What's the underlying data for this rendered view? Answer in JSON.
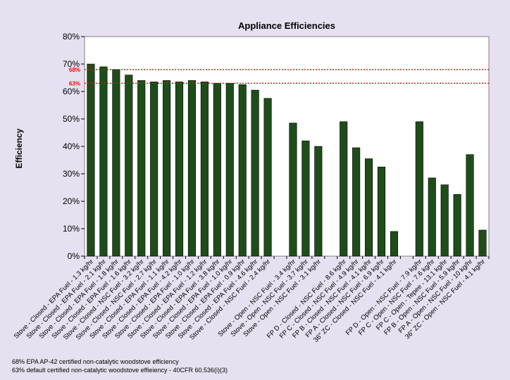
{
  "chart_data": {
    "type": "bar",
    "title": "Appliance Efficiencies",
    "xlabel": "",
    "ylabel": "Efficiency",
    "ylim": [
      0,
      80
    ],
    "yticks": [
      "0%",
      "10%",
      "20%",
      "30%",
      "40%",
      "50%",
      "60%",
      "70%",
      "80%"
    ],
    "grid": false,
    "legend": "none",
    "bar_color": "#1f4d1a",
    "categories": [
      "Stove - Closed - EPA Fuel - 1.3 kg/hr",
      "Stove - Closed - EPA Fuel - 2.1 kg/hr",
      "Stove - Closed - EPA Fuel - 1.8 kg/hr",
      "Stove - Closed - EPA Fuel - 1.6 kg/hr",
      "Stove - Closed - NSC Fuel - 3.2 kg/hr",
      "Stove - Closed - NSC Fuel - 2.7 kg/hr",
      "Stove - Closed - EPA Fuel - 1.1 kg/hr",
      "Stove - Closed - EPA Fuel - 4.2 kg/hr",
      "Stove - Closed - EPA Fuel - 1.0 kg/hr",
      "Stove - Closed - EPA Fuel - 1.2 kg/hr",
      "Stove - Closed - EPA Fuel - 3.8 kg/hr",
      "Stove - Closed - EPA Fuel - 1.0 kg/hr",
      "Stove - Closed - EPA Fuel - 0.9 kg/hr",
      "Stove - Closed - EPA Fuel - 4.6 kg/hr",
      "Stove - Closed - NSC Fuel - 2.4 kg/hr",
      "",
      "Stove - Open - NSC Fuel - 3.4 kg/hr",
      "Stove - Open - NSC Fuel - 3.7 kg/hr",
      "Stove - Open - NSC Fuel - 3.1 kg/hr",
      "",
      "FP D - Closed - NSC Fuel - 8.6 kg/hr",
      "FP C - Closed - NSC Fuel - 4.9 kg/hr",
      "FP B - Closed - NSC Fuel - 4.1 kg/hr",
      "FP A - Closed - NSC Fuel - 6.9 kg/hr",
      "36\" ZC - Closed - NSC Fuel - 4.1 kg/hr",
      "",
      "FP D - Open - NSC Fuel - 7.9 kg/hr",
      "FP C - Open - NSC Fuel - 7.6 kg/hr",
      "FP C - Open - Tepee - 13.1 kg/hr",
      "FP B - Open - NSC Fuel - 5.9 kg/hr",
      "FP A - Open - NSC Fuel - 10 kg/hr",
      "36\" ZC - Open - NSC Fuel - 4.1 kg/hr"
    ],
    "values": [
      70,
      69,
      68,
      66,
      64,
      63.5,
      64,
      63.5,
      64,
      63.5,
      63,
      63,
      62.5,
      60.5,
      57.5,
      null,
      48.5,
      42,
      40,
      null,
      49,
      39.5,
      35.5,
      32.5,
      9,
      null,
      49,
      28.5,
      26,
      22.5,
      37,
      9.5
    ],
    "reference_lines": [
      {
        "value": 68,
        "label": "68%",
        "color": "#ff0000",
        "note": "68% EPA AP-42 certified non-catalytic woodstove efficiency"
      },
      {
        "value": 63,
        "label": "63%",
        "color": "#ff0000",
        "note": "63% default certified non-catalytic woodstove effieiency - 40CFR 60.536(i)(3)"
      }
    ]
  }
}
